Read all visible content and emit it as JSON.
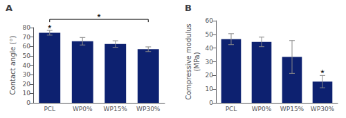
{
  "chart_data": [
    {
      "type": "bar",
      "title": "A",
      "categories": [
        "PCL",
        "WP0%",
        "WP15%",
        "WP30%"
      ],
      "values": [
        74.5,
        65.5,
        62.5,
        57.0
      ],
      "errors": [
        2.5,
        4.0,
        3.5,
        2.5
      ],
      "ylabel": "Contact angle (°)",
      "ylim": [
        0,
        80
      ],
      "yticks": [
        0,
        10,
        20,
        30,
        40,
        50,
        60,
        70,
        80
      ],
      "color": "#0d2170",
      "grid": false,
      "annotations": [
        {
          "text": "*",
          "category": "PCL"
        },
        {
          "text": "*",
          "from": "PCL",
          "to": "WP30%"
        }
      ]
    },
    {
      "type": "bar",
      "title": "B",
      "categories": [
        "PCL",
        "WP0%",
        "WP15%",
        "WP30%"
      ],
      "values": [
        46.5,
        44.5,
        33.5,
        15.5
      ],
      "errors": [
        4.0,
        3.5,
        12.0,
        4.5
      ],
      "ylabel": "Compressive modulus\n(MPa)",
      "ylim": [
        0,
        60
      ],
      "yticks": [
        0,
        10,
        20,
        30,
        40,
        50,
        60
      ],
      "color": "#0d2170",
      "grid": false,
      "annotations": [
        {
          "text": "*",
          "category": "WP30%"
        }
      ]
    }
  ]
}
